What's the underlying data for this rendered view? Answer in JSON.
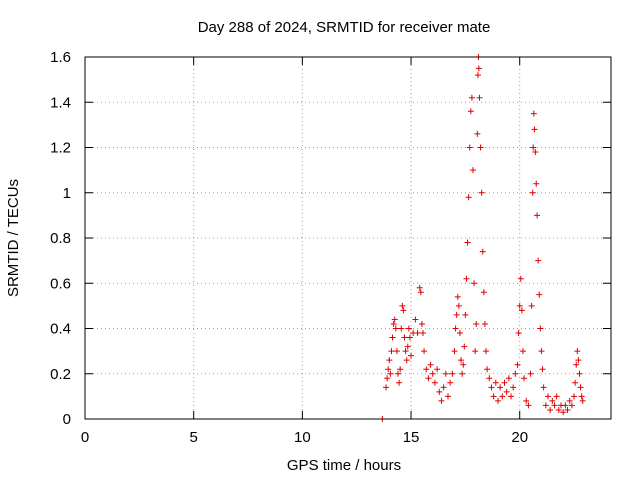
{
  "chart_data": {
    "type": "scatter",
    "title": "Day 288 of 2024, SRMTID for receiver mate",
    "xlabel": "GPS time / hours",
    "ylabel": "SRMTID / TECUs",
    "xlim": [
      0,
      24.2
    ],
    "ylim": [
      0,
      1.6
    ],
    "grid": true,
    "marker": "+",
    "color": "#e00000",
    "xticks": [
      0,
      5,
      10,
      15,
      20
    ],
    "xtick_labels": [
      "0",
      "5",
      "10",
      "15",
      "20"
    ],
    "yticks": [
      0,
      0.2,
      0.4,
      0.6,
      0.8,
      1.0,
      1.2,
      1.4,
      1.6
    ],
    "ytick_labels": [
      "0",
      "0.2",
      "0.4",
      "0.6",
      "0.8",
      "1",
      "1.2",
      "1.4",
      "1.6"
    ],
    "series": [
      {
        "name": "SRMTID",
        "points": [
          [
            13.68,
            0.0
          ],
          [
            13.85,
            0.14
          ],
          [
            13.9,
            0.18
          ],
          [
            13.95,
            0.22
          ],
          [
            14.0,
            0.26
          ],
          [
            14.05,
            0.2
          ],
          [
            14.1,
            0.3
          ],
          [
            14.15,
            0.36
          ],
          [
            14.2,
            0.42
          ],
          [
            14.25,
            0.44
          ],
          [
            14.3,
            0.4
          ],
          [
            14.35,
            0.3
          ],
          [
            14.4,
            0.2
          ],
          [
            14.45,
            0.16
          ],
          [
            14.5,
            0.22
          ],
          [
            14.55,
            0.4
          ],
          [
            14.6,
            0.5
          ],
          [
            14.65,
            0.48
          ],
          [
            14.7,
            0.36
          ],
          [
            14.75,
            0.3
          ],
          [
            14.8,
            0.26
          ],
          [
            14.85,
            0.32
          ],
          [
            14.9,
            0.4
          ],
          [
            14.95,
            0.36
          ],
          [
            15.0,
            0.28
          ],
          [
            15.1,
            0.38
          ],
          [
            15.2,
            0.44
          ],
          [
            15.3,
            0.38
          ],
          [
            15.4,
            0.58
          ],
          [
            15.45,
            0.56
          ],
          [
            15.5,
            0.42
          ],
          [
            15.55,
            0.38
          ],
          [
            15.6,
            0.3
          ],
          [
            15.7,
            0.22
          ],
          [
            15.8,
            0.18
          ],
          [
            15.9,
            0.24
          ],
          [
            16.0,
            0.2
          ],
          [
            16.1,
            0.16
          ],
          [
            16.2,
            0.22
          ],
          [
            16.3,
            0.12
          ],
          [
            16.4,
            0.08
          ],
          [
            16.5,
            0.14
          ],
          [
            16.6,
            0.2
          ],
          [
            16.7,
            0.1
          ],
          [
            16.8,
            0.16
          ],
          [
            16.9,
            0.2
          ],
          [
            17.0,
            0.3
          ],
          [
            17.05,
            0.4
          ],
          [
            17.1,
            0.46
          ],
          [
            17.15,
            0.54
          ],
          [
            17.2,
            0.5
          ],
          [
            17.25,
            0.38
          ],
          [
            17.3,
            0.26
          ],
          [
            17.35,
            0.2
          ],
          [
            17.4,
            0.24
          ],
          [
            17.45,
            0.32
          ],
          [
            17.5,
            0.46
          ],
          [
            17.55,
            0.62
          ],
          [
            17.6,
            0.78
          ],
          [
            17.65,
            0.98
          ],
          [
            17.7,
            1.2
          ],
          [
            17.75,
            1.36
          ],
          [
            17.8,
            1.42
          ],
          [
            17.85,
            1.1
          ],
          [
            17.9,
            0.6
          ],
          [
            17.95,
            0.3
          ],
          [
            18.0,
            0.42
          ],
          [
            18.05,
            1.26
          ],
          [
            18.08,
            1.52
          ],
          [
            18.1,
            1.6
          ],
          [
            18.12,
            1.55
          ],
          [
            18.15,
            1.42
          ],
          [
            18.2,
            1.2
          ],
          [
            18.25,
            1.0
          ],
          [
            18.3,
            0.74
          ],
          [
            18.35,
            0.56
          ],
          [
            18.4,
            0.42
          ],
          [
            18.45,
            0.3
          ],
          [
            18.5,
            0.22
          ],
          [
            18.6,
            0.18
          ],
          [
            18.7,
            0.14
          ],
          [
            18.8,
            0.1
          ],
          [
            18.9,
            0.16
          ],
          [
            19.0,
            0.08
          ],
          [
            19.1,
            0.14
          ],
          [
            19.2,
            0.1
          ],
          [
            19.3,
            0.16
          ],
          [
            19.4,
            0.12
          ],
          [
            19.5,
            0.18
          ],
          [
            19.6,
            0.1
          ],
          [
            19.7,
            0.14
          ],
          [
            19.8,
            0.2
          ],
          [
            19.9,
            0.24
          ],
          [
            19.95,
            0.38
          ],
          [
            20.0,
            0.5
          ],
          [
            20.05,
            0.62
          ],
          [
            20.1,
            0.48
          ],
          [
            20.15,
            0.3
          ],
          [
            20.2,
            0.18
          ],
          [
            20.3,
            0.08
          ],
          [
            20.4,
            0.06
          ],
          [
            20.5,
            0.2
          ],
          [
            20.55,
            0.5
          ],
          [
            20.6,
            1.0
          ],
          [
            20.62,
            1.2
          ],
          [
            20.65,
            1.35
          ],
          [
            20.68,
            1.28
          ],
          [
            20.72,
            1.18
          ],
          [
            20.76,
            1.04
          ],
          [
            20.8,
            0.9
          ],
          [
            20.85,
            0.7
          ],
          [
            20.9,
            0.55
          ],
          [
            20.95,
            0.4
          ],
          [
            21.0,
            0.3
          ],
          [
            21.05,
            0.22
          ],
          [
            21.1,
            0.14
          ],
          [
            21.2,
            0.06
          ],
          [
            21.3,
            0.1
          ],
          [
            21.4,
            0.04
          ],
          [
            21.5,
            0.08
          ],
          [
            21.6,
            0.06
          ],
          [
            21.7,
            0.1
          ],
          [
            21.8,
            0.04
          ],
          [
            21.9,
            0.06
          ],
          [
            22.0,
            0.03
          ],
          [
            22.1,
            0.06
          ],
          [
            22.2,
            0.04
          ],
          [
            22.3,
            0.08
          ],
          [
            22.4,
            0.06
          ],
          [
            22.5,
            0.1
          ],
          [
            22.55,
            0.16
          ],
          [
            22.6,
            0.24
          ],
          [
            22.65,
            0.3
          ],
          [
            22.7,
            0.26
          ],
          [
            22.75,
            0.2
          ],
          [
            22.8,
            0.14
          ],
          [
            22.85,
            0.1
          ],
          [
            22.9,
            0.08
          ]
        ]
      }
    ]
  }
}
